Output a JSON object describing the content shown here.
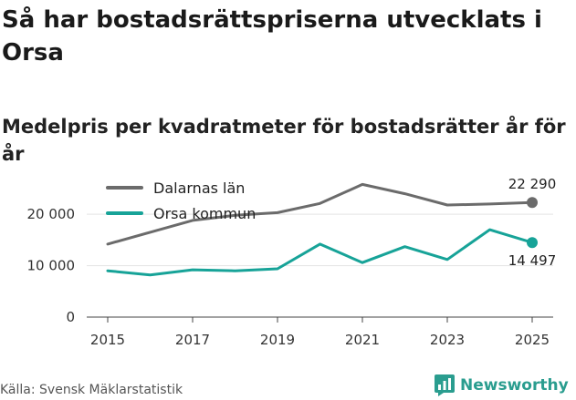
{
  "title": "Så har bostadsrättspriserna utvecklats i Orsa",
  "subtitle": "Medelpris per kvadratmeter för bostadsrätter år för år",
  "source": "Källa: Svensk Mäklarstatistik",
  "brand": "Newsworthy",
  "chart_data": {
    "type": "line",
    "x": [
      2015,
      2016,
      2017,
      2018,
      2019,
      2020,
      2021,
      2022,
      2023,
      2024,
      2025
    ],
    "xticks": [
      2015,
      2017,
      2019,
      2021,
      2023,
      2025
    ],
    "xtick_labels": [
      "2015",
      "2017",
      "2019",
      "2021",
      "2023",
      "2025"
    ],
    "yticks": [
      0,
      10000,
      20000
    ],
    "ytick_labels": [
      "0",
      "10 000",
      "20 000"
    ],
    "ylim": [
      0,
      28000
    ],
    "grid": true,
    "legend_position": "top-left",
    "series": [
      {
        "name": "Dalarnas län",
        "color": "#6b6b6b",
        "values": [
          14200,
          16500,
          18800,
          19800,
          20300,
          22100,
          25800,
          24000,
          21800,
          22000,
          22290
        ],
        "end_label": "22 290"
      },
      {
        "name": "Orsa kommun",
        "color": "#17a398",
        "values": [
          9000,
          8200,
          9200,
          9000,
          9400,
          14200,
          10600,
          13700,
          11200,
          17000,
          14497
        ],
        "end_label": "14 497"
      }
    ]
  }
}
